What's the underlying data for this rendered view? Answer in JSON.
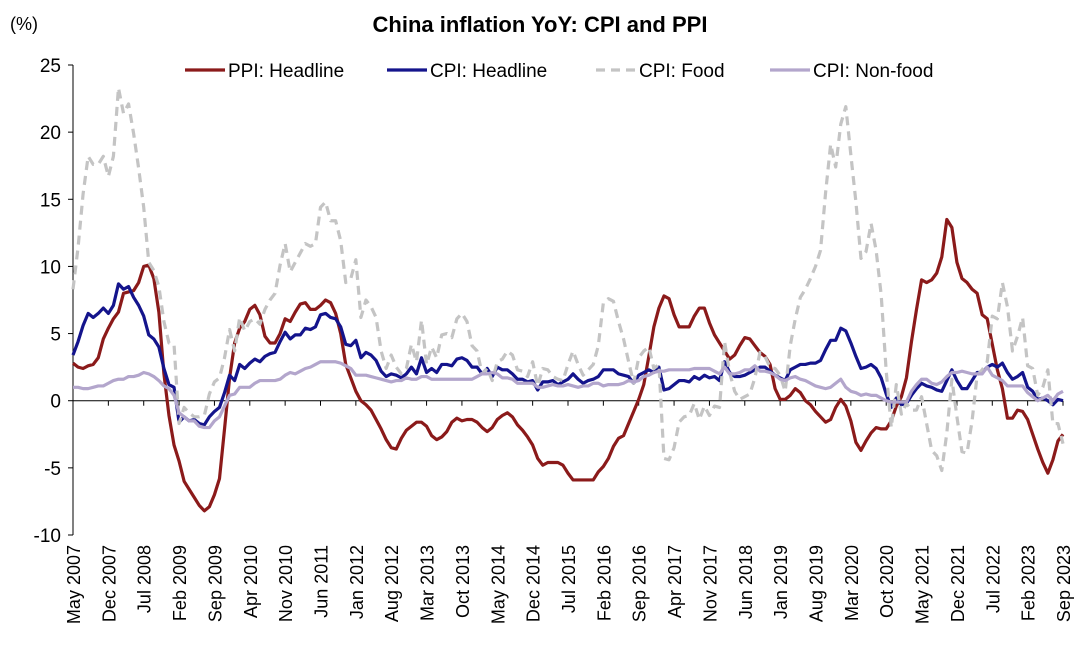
{
  "chart_data": {
    "type": "line",
    "title": "China inflation YoY: CPI and PPI",
    "y_label": "(%)",
    "categories": [
      "May 2007",
      null,
      null,
      null,
      null,
      null,
      null,
      "Dec 2007",
      null,
      null,
      null,
      null,
      null,
      null,
      "Jul 2008",
      null,
      null,
      null,
      null,
      null,
      null,
      "Feb 2009",
      null,
      null,
      null,
      null,
      null,
      null,
      "Sep 2009",
      null,
      null,
      null,
      null,
      null,
      null,
      "Apr 2010",
      null,
      null,
      null,
      null,
      null,
      null,
      "Nov 2010",
      null,
      null,
      null,
      null,
      null,
      null,
      "Jun 2011",
      null,
      null,
      null,
      null,
      null,
      null,
      "Jan 2012",
      null,
      null,
      null,
      null,
      null,
      null,
      "Aug 2012",
      null,
      null,
      null,
      null,
      null,
      null,
      "Mar 2013",
      null,
      null,
      null,
      null,
      null,
      null,
      "Oct 2013",
      null,
      null,
      null,
      null,
      null,
      null,
      "May 2014",
      null,
      null,
      null,
      null,
      null,
      null,
      "Dec 2014",
      null,
      null,
      null,
      null,
      null,
      null,
      "Jul 2015",
      null,
      null,
      null,
      null,
      null,
      null,
      "Feb 2016",
      null,
      null,
      null,
      null,
      null,
      null,
      "Sep 2016",
      null,
      null,
      null,
      null,
      null,
      null,
      "Apr 2017",
      null,
      null,
      null,
      null,
      null,
      null,
      "Nov 2017",
      null,
      null,
      null,
      null,
      null,
      null,
      "Jun 2018",
      null,
      null,
      null,
      null,
      null,
      null,
      "Jan 2019",
      null,
      null,
      null,
      null,
      null,
      null,
      "Aug 2019",
      null,
      null,
      null,
      null,
      null,
      null,
      "Mar 2020",
      null,
      null,
      null,
      null,
      null,
      null,
      "Oct 2020",
      null,
      null,
      null,
      null,
      null,
      null,
      "May 2021",
      null,
      null,
      null,
      null,
      null,
      null,
      "Dec 2021",
      null,
      null,
      null,
      null,
      null,
      null,
      "Jul 2022",
      null,
      null,
      null,
      null,
      null,
      null,
      "Feb 2023",
      null,
      null,
      null,
      null,
      null,
      null,
      "Sep 2023"
    ],
    "series": [
      {
        "name": "PPI: Headline",
        "color": "#8b1a1a",
        "dash": false,
        "values": [
          2.8,
          2.5,
          2.4,
          2.6,
          2.7,
          3.2,
          4.6,
          5.4,
          6.1,
          6.6,
          8.0,
          8.1,
          8.2,
          8.8,
          10.0,
          10.1,
          9.1,
          6.6,
          2.0,
          -1.1,
          -3.3,
          -4.5,
          -6.0,
          -6.6,
          -7.2,
          -7.8,
          -8.2,
          -7.9,
          -7.0,
          -5.8,
          -2.1,
          1.7,
          4.3,
          5.4,
          5.9,
          6.8,
          7.1,
          6.4,
          4.8,
          4.3,
          4.3,
          5.0,
          6.1,
          5.9,
          6.6,
          7.2,
          7.3,
          6.8,
          6.8,
          7.1,
          7.5,
          7.3,
          6.5,
          5.0,
          2.7,
          1.7,
          0.7,
          0.0,
          -0.3,
          -0.7,
          -1.4,
          -2.1,
          -2.9,
          -3.5,
          -3.6,
          -2.8,
          -2.2,
          -1.9,
          -1.6,
          -1.6,
          -1.9,
          -2.6,
          -2.9,
          -2.7,
          -2.3,
          -1.6,
          -1.3,
          -1.5,
          -1.4,
          -1.4,
          -1.6,
          -2.0,
          -2.3,
          -2.0,
          -1.4,
          -1.1,
          -0.9,
          -1.2,
          -1.8,
          -2.2,
          -2.7,
          -3.3,
          -4.3,
          -4.8,
          -4.6,
          -4.6,
          -4.6,
          -4.8,
          -5.4,
          -5.9,
          -5.9,
          -5.9,
          -5.9,
          -5.9,
          -5.3,
          -4.9,
          -4.3,
          -3.4,
          -2.8,
          -2.6,
          -1.7,
          -0.8,
          0.1,
          1.2,
          3.3,
          5.5,
          6.9,
          7.8,
          7.6,
          6.4,
          5.5,
          5.5,
          5.5,
          6.3,
          6.9,
          6.9,
          5.8,
          4.9,
          4.3,
          3.7,
          3.1,
          3.4,
          4.1,
          4.7,
          4.6,
          4.1,
          3.6,
          3.3,
          2.7,
          0.9,
          0.1,
          0.1,
          0.4,
          0.9,
          0.6,
          0.0,
          -0.3,
          -0.8,
          -1.2,
          -1.6,
          -1.4,
          -0.5,
          0.1,
          -0.4,
          -1.5,
          -3.1,
          -3.7,
          -3.0,
          -2.4,
          -2.0,
          -2.1,
          -2.1,
          -1.5,
          -0.4,
          0.3,
          1.7,
          4.4,
          6.8,
          9.0,
          8.8,
          9.0,
          9.5,
          10.7,
          13.5,
          12.9,
          10.3,
          9.1,
          8.8,
          8.3,
          8.0,
          6.4,
          6.1,
          4.2,
          2.3,
          0.9,
          -1.3,
          -1.3,
          -0.7,
          -0.8,
          -1.4,
          -2.5,
          -3.6,
          -4.6,
          -5.4,
          -4.4,
          -3.0,
          -2.5
        ]
      },
      {
        "name": "CPI: Headline",
        "color": "#14148c",
        "dash": false,
        "values": [
          3.4,
          4.4,
          5.6,
          6.5,
          6.2,
          6.5,
          6.9,
          6.5,
          7.1,
          8.7,
          8.3,
          8.5,
          7.7,
          7.1,
          6.3,
          4.9,
          4.6,
          4.0,
          2.4,
          1.2,
          1.0,
          -1.6,
          -1.2,
          -1.5,
          -1.4,
          -1.7,
          -1.8,
          -1.2,
          -0.8,
          -0.5,
          0.6,
          1.9,
          1.5,
          2.7,
          2.4,
          2.8,
          3.1,
          2.9,
          3.3,
          3.5,
          3.6,
          4.4,
          5.1,
          4.6,
          4.9,
          4.9,
          5.4,
          5.3,
          5.5,
          6.4,
          6.5,
          6.2,
          6.1,
          5.5,
          4.2,
          4.1,
          4.5,
          3.2,
          3.6,
          3.4,
          3.0,
          2.2,
          1.8,
          2.0,
          1.9,
          1.7,
          2.0,
          2.5,
          2.0,
          3.2,
          2.1,
          2.4,
          2.1,
          2.7,
          2.7,
          2.6,
          3.1,
          3.2,
          3.0,
          2.5,
          2.5,
          2.0,
          2.4,
          1.8,
          2.5,
          2.3,
          2.3,
          2.0,
          1.6,
          1.6,
          1.4,
          1.5,
          0.8,
          1.4,
          1.4,
          1.5,
          1.2,
          1.4,
          1.6,
          2.0,
          1.6,
          1.3,
          1.5,
          1.6,
          1.8,
          2.3,
          2.3,
          2.3,
          2.0,
          1.9,
          1.8,
          1.3,
          1.9,
          2.1,
          2.3,
          2.1,
          2.5,
          0.8,
          0.9,
          1.2,
          1.5,
          1.5,
          1.4,
          1.8,
          1.6,
          1.9,
          1.7,
          1.8,
          1.5,
          2.9,
          2.1,
          1.8,
          1.8,
          1.9,
          2.1,
          2.3,
          2.5,
          2.5,
          2.2,
          1.9,
          1.7,
          1.5,
          2.3,
          2.5,
          2.7,
          2.7,
          2.8,
          2.8,
          3.0,
          3.8,
          4.5,
          4.5,
          5.4,
          5.2,
          4.3,
          3.3,
          2.4,
          2.5,
          2.7,
          2.4,
          1.7,
          0.5,
          -0.5,
          0.2,
          -0.3,
          -0.2,
          0.4,
          0.9,
          1.3,
          1.1,
          1.0,
          0.8,
          0.7,
          1.5,
          2.3,
          1.5,
          0.9,
          0.9,
          1.5,
          2.1,
          2.1,
          2.5,
          2.7,
          2.5,
          2.8,
          2.1,
          1.6,
          1.8,
          2.1,
          1.0,
          0.7,
          0.1,
          0.2,
          0.0,
          -0.3,
          0.1,
          0.0
        ]
      },
      {
        "name": "CPI: Food",
        "color": "#c4c4c4",
        "dash": true,
        "values": [
          8.3,
          11.4,
          15.4,
          18.2,
          17.6,
          17.6,
          18.2,
          16.7,
          18.2,
          23.3,
          21.4,
          22.1,
          19.9,
          17.3,
          14.4,
          10.3,
          9.7,
          8.5,
          5.9,
          4.3,
          4.2,
          -1.7,
          -0.5,
          -0.9,
          -1.2,
          -1.2,
          -1.1,
          0.5,
          1.4,
          1.7,
          3.2,
          5.3,
          3.7,
          6.2,
          5.2,
          5.9,
          6.1,
          5.7,
          6.8,
          7.5,
          8.0,
          10.1,
          11.7,
          9.6,
          10.3,
          11.0,
          11.7,
          11.5,
          11.7,
          14.4,
          14.8,
          13.4,
          13.4,
          11.9,
          8.8,
          9.1,
          10.5,
          6.2,
          7.5,
          7.0,
          6.2,
          3.7,
          2.4,
          3.4,
          2.5,
          2.0,
          2.4,
          4.2,
          2.9,
          6.0,
          2.7,
          4.0,
          3.2,
          4.9,
          5.0,
          4.7,
          6.1,
          6.5,
          5.9,
          4.1,
          3.7,
          2.0,
          2.4,
          1.5,
          2.9,
          3.1,
          3.7,
          3.4,
          2.3,
          2.2,
          1.8,
          2.9,
          1.1,
          2.4,
          2.3,
          1.8,
          1.6,
          1.5,
          2.7,
          3.7,
          2.7,
          1.9,
          2.3,
          2.7,
          4.1,
          7.3,
          7.6,
          7.4,
          5.9,
          4.6,
          2.9,
          1.3,
          3.2,
          3.7,
          4.0,
          2.4,
          2.7,
          -4.3,
          -4.4,
          -3.5,
          -1.6,
          -1.2,
          -1.1,
          -0.2,
          -1.4,
          -0.4,
          -1.1,
          -0.4,
          -0.5,
          4.4,
          2.1,
          0.7,
          0.1,
          0.3,
          0.5,
          1.7,
          3.6,
          3.3,
          2.5,
          2.4,
          1.9,
          0.7,
          4.1,
          6.1,
          7.7,
          8.3,
          9.1,
          10.0,
          11.2,
          15.5,
          19.1,
          17.4,
          20.6,
          21.9,
          18.3,
          14.8,
          10.6,
          11.1,
          13.2,
          11.2,
          7.9,
          2.2,
          -2.0,
          1.2,
          -1.0,
          -0.2,
          -0.7,
          -0.7,
          0.3,
          -1.7,
          -3.7,
          -4.1,
          -5.2,
          -2.4,
          1.6,
          -1.2,
          -3.8,
          -3.9,
          -1.5,
          1.9,
          2.3,
          2.9,
          6.3,
          6.1,
          8.8,
          7.0,
          3.7,
          4.8,
          6.2,
          2.6,
          2.4,
          0.4,
          1.0,
          2.3,
          -1.7,
          -1.7,
          -3.2
        ]
      },
      {
        "name": "CPI: Non-food",
        "color": "#b3a6cc",
        "dash": false,
        "values": [
          1.0,
          1.0,
          0.9,
          0.9,
          1.0,
          1.1,
          1.1,
          1.3,
          1.5,
          1.6,
          1.6,
          1.8,
          1.8,
          1.9,
          2.1,
          2.0,
          1.8,
          1.5,
          1.1,
          0.9,
          0.4,
          -0.9,
          -1.2,
          -1.5,
          -1.5,
          -1.9,
          -2.0,
          -2.0,
          -1.5,
          -1.2,
          -0.4,
          0.4,
          0.5,
          1.0,
          1.0,
          1.0,
          1.3,
          1.5,
          1.5,
          1.5,
          1.5,
          1.6,
          1.9,
          2.1,
          2.0,
          2.2,
          2.4,
          2.5,
          2.7,
          2.9,
          2.9,
          2.9,
          2.9,
          2.8,
          2.6,
          2.4,
          1.9,
          1.9,
          1.9,
          1.8,
          1.7,
          1.6,
          1.5,
          1.4,
          1.5,
          1.5,
          1.7,
          1.6,
          1.6,
          1.8,
          1.8,
          1.6,
          1.6,
          1.6,
          1.6,
          1.6,
          1.6,
          1.6,
          1.6,
          1.6,
          1.8,
          2.0,
          2.0,
          2.1,
          2.0,
          1.7,
          1.7,
          1.6,
          1.3,
          1.3,
          1.3,
          1.3,
          1.0,
          1.0,
          1.1,
          1.2,
          1.1,
          1.1,
          1.2,
          1.1,
          1.0,
          1.1,
          1.1,
          1.3,
          1.3,
          1.1,
          1.2,
          1.2,
          1.2,
          1.3,
          1.5,
          1.4,
          1.5,
          1.8,
          1.9,
          2.1,
          2.2,
          2.2,
          2.3,
          2.3,
          2.3,
          2.3,
          2.3,
          2.4,
          2.4,
          2.4,
          2.4,
          2.2,
          2.0,
          2.5,
          2.0,
          2.0,
          2.1,
          2.3,
          2.3,
          2.6,
          2.2,
          2.2,
          2.1,
          1.9,
          1.6,
          1.5,
          1.7,
          1.8,
          1.6,
          1.5,
          1.3,
          1.1,
          1.0,
          0.9,
          1.0,
          1.3,
          1.6,
          1.0,
          0.7,
          0.6,
          0.4,
          0.5,
          0.4,
          0.4,
          0.2,
          0.0,
          -0.1,
          -0.1,
          -0.1,
          -0.1,
          0.7,
          1.2,
          1.6,
          1.6,
          1.3,
          1.2,
          1.4,
          1.8,
          2.1,
          2.1,
          2.2,
          2.1,
          2.0,
          2.0,
          2.0,
          2.5,
          1.9,
          1.7,
          1.5,
          1.1,
          1.1,
          1.1,
          1.1,
          0.6,
          0.3,
          0.0,
          0.2,
          0.4,
          0.0,
          0.5,
          0.7
        ]
      }
    ],
    "ylim": [
      -10,
      25
    ],
    "yticks": [
      -10,
      -5,
      0,
      5,
      10,
      15,
      20,
      25
    ],
    "grid": false,
    "legend": "top"
  }
}
